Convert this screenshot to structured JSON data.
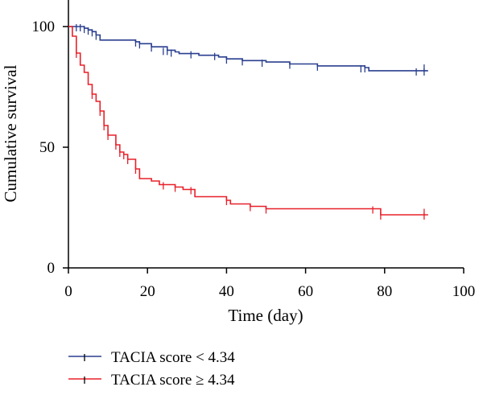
{
  "chart_data": {
    "type": "line",
    "subtype": "kaplan-meier",
    "xlabel": "Time (day)",
    "ylabel": "Cumulative survival",
    "xlim": [
      0,
      100
    ],
    "ylim": [
      0,
      100
    ],
    "xticks": [
      0,
      20,
      40,
      60,
      80,
      100
    ],
    "yticks": [
      0,
      50,
      100
    ],
    "grid": false,
    "legend_position": "bottom-left",
    "series": [
      {
        "name": "TACIA score < 4.34",
        "color": "#2a3f8f",
        "steps": [
          [
            0,
            100
          ],
          [
            3,
            100
          ],
          [
            4,
            99.3
          ],
          [
            5,
            98.6
          ],
          [
            6,
            97.9
          ],
          [
            7,
            96.5
          ],
          [
            8,
            94.4
          ],
          [
            17,
            93.7
          ],
          [
            18,
            92.9
          ],
          [
            21,
            91.6
          ],
          [
            25,
            90.2
          ],
          [
            27,
            89.5
          ],
          [
            28,
            88.8
          ],
          [
            33,
            88.1
          ],
          [
            38,
            87.4
          ],
          [
            40,
            86.6
          ],
          [
            44,
            85.9
          ],
          [
            50,
            85.3
          ],
          [
            56,
            84.5
          ],
          [
            63,
            83.7
          ],
          [
            75,
            83.0
          ],
          [
            76,
            81.7
          ],
          [
            91,
            81.7
          ]
        ],
        "censored": [
          [
            2,
            100
          ],
          [
            3,
            100
          ],
          [
            4,
            99.3
          ],
          [
            5,
            98.6
          ],
          [
            6,
            97.9
          ],
          [
            7,
            96.5
          ],
          [
            17,
            93.7
          ],
          [
            18,
            92.9
          ],
          [
            21,
            91.6
          ],
          [
            24,
            90.2
          ],
          [
            25,
            90.2
          ],
          [
            26,
            89.5
          ],
          [
            31,
            88.8
          ],
          [
            37,
            88.1
          ],
          [
            40,
            86.6
          ],
          [
            44,
            85.9
          ],
          [
            49,
            85.3
          ],
          [
            56,
            84.5
          ],
          [
            63,
            83.7
          ],
          [
            74,
            83.0
          ],
          [
            75,
            83.0
          ],
          [
            88,
            81.7
          ],
          [
            90,
            81.7
          ],
          [
            90,
            83.3
          ]
        ]
      },
      {
        "name": "TACIA score ≥ 4.34",
        "color": "#e8202a",
        "steps": [
          [
            0,
            100
          ],
          [
            1,
            96
          ],
          [
            2,
            89
          ],
          [
            3,
            84
          ],
          [
            4,
            81
          ],
          [
            5,
            76
          ],
          [
            6,
            72
          ],
          [
            7,
            69
          ],
          [
            8,
            65
          ],
          [
            9,
            59
          ],
          [
            10,
            55
          ],
          [
            12,
            51
          ],
          [
            13,
            48
          ],
          [
            14,
            47
          ],
          [
            15,
            45
          ],
          [
            17,
            41
          ],
          [
            18,
            37
          ],
          [
            21,
            36
          ],
          [
            23,
            34.5
          ],
          [
            27,
            33.5
          ],
          [
            29,
            32.5
          ],
          [
            32,
            29.5
          ],
          [
            40,
            28
          ],
          [
            41,
            26.5
          ],
          [
            46,
            25.5
          ],
          [
            50,
            24.5
          ],
          [
            79,
            22
          ],
          [
            91,
            22
          ]
        ],
        "censored": [
          [
            2,
            89
          ],
          [
            6,
            72
          ],
          [
            8,
            65
          ],
          [
            9,
            59
          ],
          [
            10,
            55
          ],
          [
            12,
            51
          ],
          [
            13,
            48
          ],
          [
            14,
            47
          ],
          [
            15,
            45
          ],
          [
            17,
            41
          ],
          [
            24,
            34.5
          ],
          [
            27,
            33.5
          ],
          [
            31,
            32.5
          ],
          [
            40,
            28
          ],
          [
            46,
            25.5
          ],
          [
            50,
            24.5
          ],
          [
            77,
            24.5
          ],
          [
            79,
            22
          ],
          [
            90,
            22
          ],
          [
            90,
            23.5
          ]
        ]
      }
    ]
  }
}
